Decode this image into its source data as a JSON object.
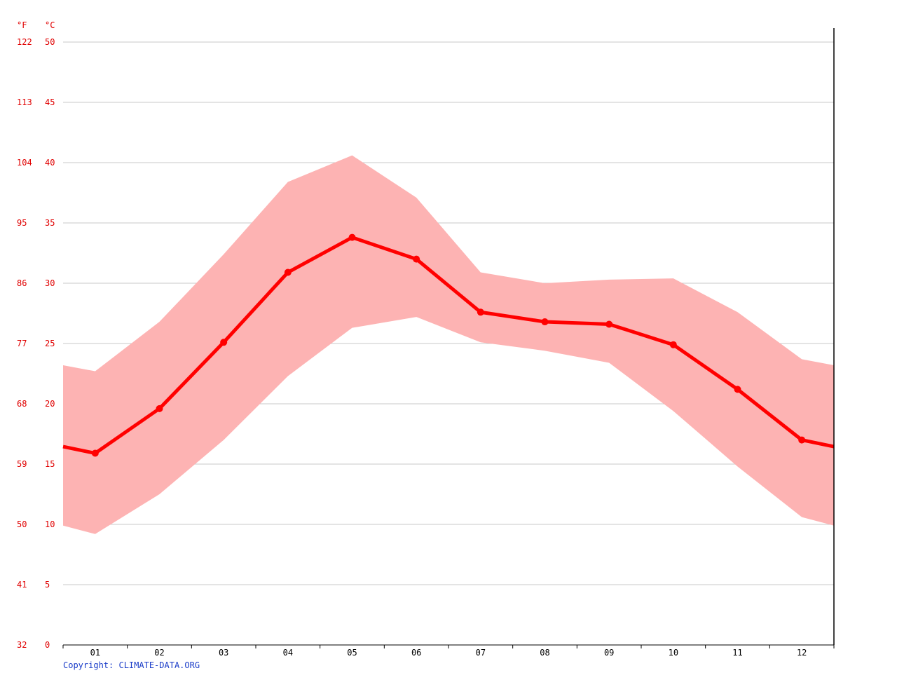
{
  "chart_data": {
    "type": "line",
    "title": "",
    "xlabel": "",
    "ylabel": "",
    "y_unit_celsius": "°C",
    "y_unit_fahrenheit": "°F",
    "categories": [
      "01",
      "02",
      "03",
      "04",
      "05",
      "06",
      "07",
      "08",
      "09",
      "10",
      "11",
      "12"
    ],
    "ylim": [
      0,
      50
    ],
    "celsius_ticks": [
      "0",
      "5",
      "10",
      "15",
      "20",
      "25",
      "30",
      "35",
      "40",
      "45",
      "50"
    ],
    "fahrenheit_ticks": [
      "32",
      "41",
      "50",
      "59",
      "68",
      "77",
      "86",
      "95",
      "104",
      "113",
      "122"
    ],
    "grid": true,
    "series": [
      {
        "role": "mean",
        "values": [
          15.9,
          19.6,
          25.1,
          30.9,
          33.8,
          32.0,
          27.6,
          26.8,
          26.6,
          24.9,
          21.2,
          17.0
        ]
      },
      {
        "role": "max",
        "values": [
          22.7,
          26.8,
          32.4,
          38.4,
          40.6,
          37.1,
          30.9,
          30.0,
          30.3,
          30.4,
          27.6,
          23.7
        ]
      },
      {
        "role": "min",
        "values": [
          9.2,
          12.5,
          17.0,
          22.3,
          26.3,
          27.2,
          25.1,
          24.4,
          23.4,
          19.4,
          14.8,
          10.6
        ]
      }
    ],
    "colors": {
      "line": "#ff0000",
      "band": "#fdb3b3",
      "axis_text": "#e00000",
      "grid": "#c8c8c8"
    }
  },
  "copyright": "Copyright: CLIMATE-DATA.ORG"
}
